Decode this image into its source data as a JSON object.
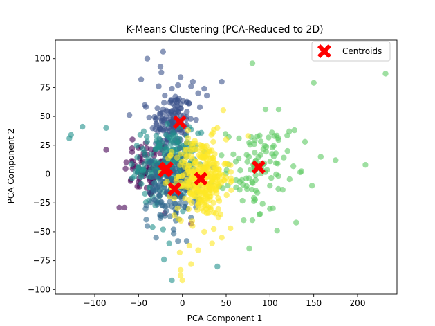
{
  "chart_data": {
    "type": "scatter",
    "title": "K-Means Clustering (PCA-Reduced to 2D)",
    "xlabel": "PCA Component 1",
    "ylabel": "PCA Component 2",
    "xlim": [
      -145,
      245
    ],
    "ylim": [
      -104,
      116
    ],
    "xticks": [
      -100,
      -50,
      0,
      50,
      100,
      150,
      200
    ],
    "yticks": [
      -100,
      -75,
      -50,
      -25,
      0,
      25,
      50,
      75,
      100
    ],
    "grid": false,
    "legend": {
      "placement": "top-right",
      "entries": [
        "Centroids"
      ]
    },
    "point_alpha": 0.6,
    "clusters": [
      {
        "color": "#440154",
        "center": [
          -40,
          5
        ],
        "spread": [
          13,
          13
        ],
        "count": 70,
        "extra_points": [
          [
            -87,
            21
          ],
          [
            -72,
            -29
          ],
          [
            -66,
            -29
          ],
          [
            -20,
            -34
          ],
          [
            10,
            -43
          ],
          [
            -57,
            30
          ]
        ]
      },
      {
        "color": "#3b528b",
        "center": [
          -12,
          45
        ],
        "spread": [
          12,
          13
        ],
        "count": 130,
        "extra_points": [
          [
            -40,
            100
          ],
          [
            -22,
            106
          ],
          [
            -47,
            82
          ],
          [
            -27,
            76
          ],
          [
            -20,
            68
          ],
          [
            -14,
            62
          ],
          [
            -12,
            74
          ],
          [
            -8,
            67
          ],
          [
            -2,
            84
          ],
          [
            5,
            62
          ],
          [
            12,
            80
          ],
          [
            18,
            70
          ],
          [
            25,
            74
          ],
          [
            20,
            58
          ],
          [
            28,
            68
          ],
          [
            45,
            80
          ],
          [
            -5,
            77
          ],
          [
            -24,
            88
          ],
          [
            -25,
            93
          ],
          [
            10,
            76
          ]
        ]
      },
      {
        "color": "#21918c",
        "center": [
          -15,
          8
        ],
        "spread": [
          17,
          14
        ],
        "count": 250,
        "extra_points": [
          [
            -129,
            31
          ],
          [
            -127,
            34
          ],
          [
            -114,
            41
          ],
          [
            -87,
            40
          ],
          [
            -44,
            37
          ],
          [
            -38,
            -23
          ],
          [
            -34,
            -46
          ],
          [
            -21,
            -74
          ],
          [
            -12,
            -92
          ],
          [
            -15,
            -60
          ],
          [
            -22,
            -48
          ],
          [
            40,
            -80
          ],
          [
            -48,
            34
          ]
        ]
      },
      {
        "color": "#31688e",
        "center": [
          -10,
          -13
        ],
        "spread": [
          15,
          14
        ],
        "count": 140,
        "extra_points": [
          [
            -40,
            -45
          ],
          [
            -30,
            -55
          ],
          [
            -10,
            -48
          ],
          [
            -5,
            -58
          ],
          [
            5,
            -58
          ],
          [
            -25,
            -38
          ],
          [
            -42,
            -30
          ]
        ]
      },
      {
        "color": "#5ec962",
        "center": [
          85,
          5
        ],
        "spread": [
          17,
          18
        ],
        "count": 100,
        "extra_points": [
          [
            80,
            96
          ],
          [
            150,
            79
          ],
          [
            232,
            87
          ],
          [
            95,
            56
          ],
          [
            110,
            56
          ],
          [
            122,
            37
          ],
          [
            128,
            38
          ],
          [
            140,
            28
          ],
          [
            158,
            15
          ],
          [
            175,
            12
          ],
          [
            209,
            8
          ],
          [
            148,
            -10
          ],
          [
            130,
            -42
          ],
          [
            100,
            -30
          ],
          [
            88,
            -35
          ],
          [
            80,
            -40
          ],
          [
            70,
            -40
          ],
          [
            120,
            20
          ],
          [
            105,
            33
          ],
          [
            103,
            23
          ]
        ]
      },
      {
        "color": "#fde725",
        "center": [
          22,
          -3
        ],
        "spread": [
          15,
          17
        ],
        "count": 320,
        "extra_points": [
          [
            -2,
            -88
          ],
          [
            0,
            -92
          ],
          [
            -3,
            -68
          ],
          [
            8,
            -62
          ],
          [
            18,
            -66
          ],
          [
            25,
            -50
          ],
          [
            34,
            -60
          ],
          [
            45,
            -55
          ],
          [
            55,
            -47
          ],
          [
            75,
            33
          ],
          [
            50,
            30
          ],
          [
            40,
            40
          ],
          [
            10,
            -78
          ],
          [
            -2,
            -83
          ]
        ]
      }
    ],
    "centroids": [
      [
        -3,
        45
      ],
      [
        -18,
        5
      ],
      [
        -20,
        3
      ],
      [
        -9,
        -13
      ],
      [
        21,
        -4
      ],
      [
        87,
        6
      ]
    ],
    "centroid_color": "#ff0000"
  }
}
